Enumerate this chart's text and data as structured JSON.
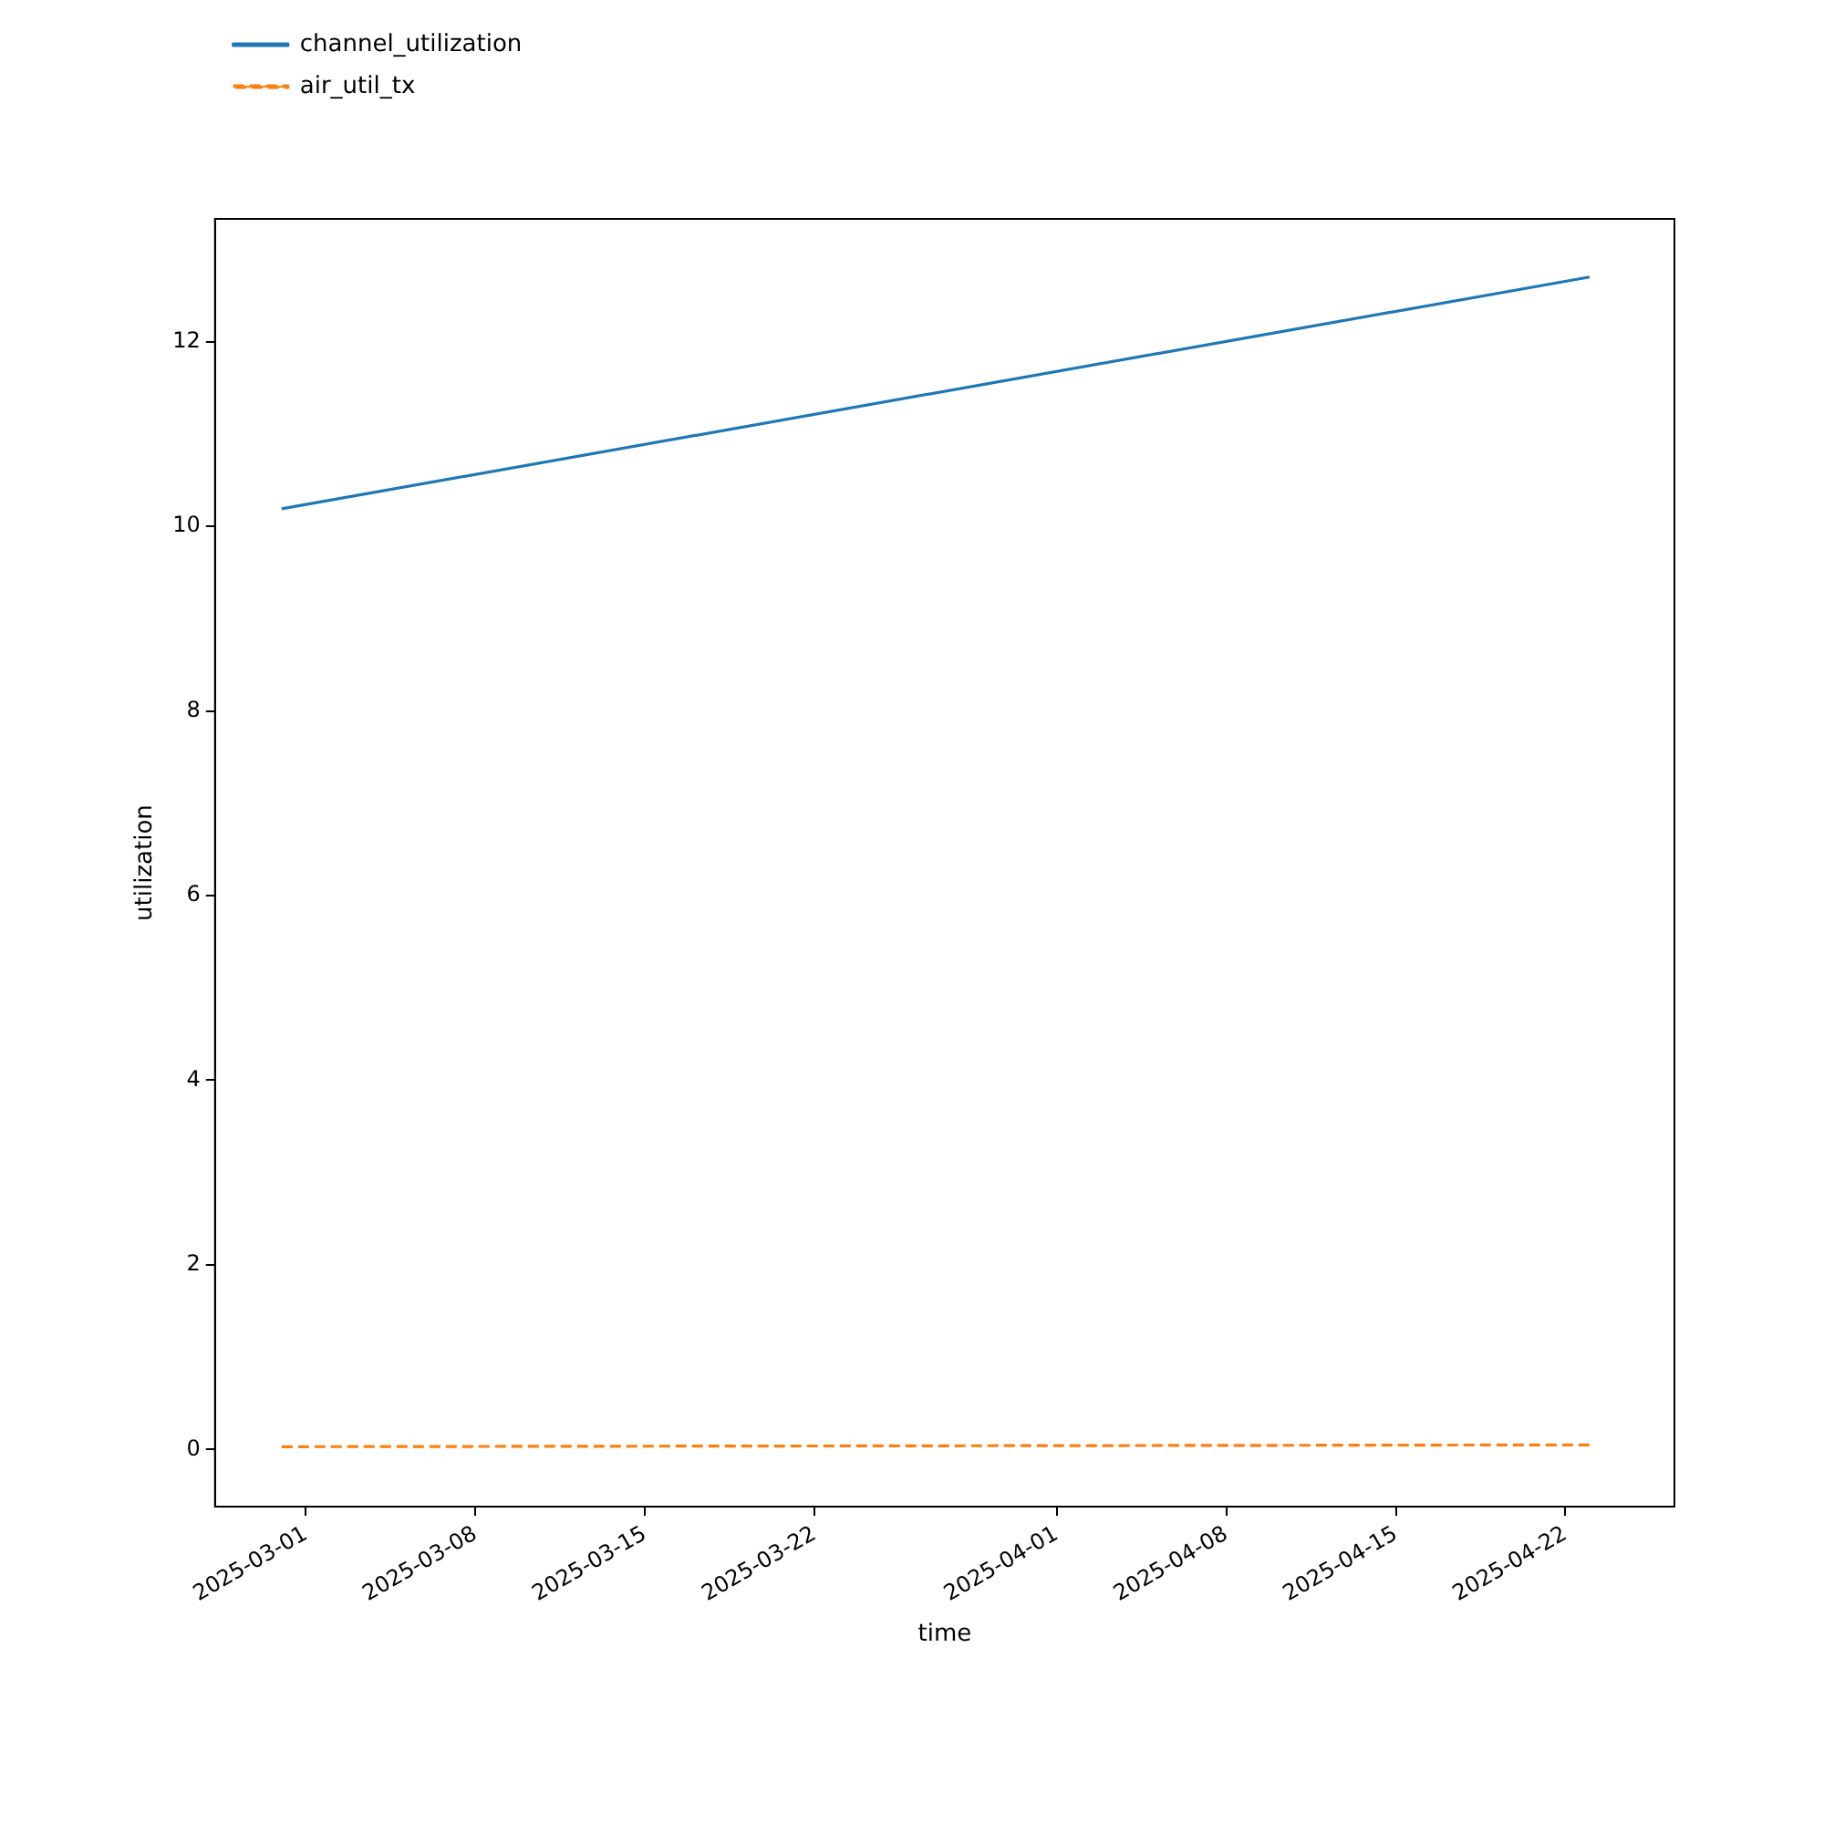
{
  "chart_data": {
    "type": "line",
    "xlabel": "time",
    "ylabel": "utilization",
    "x": [
      "2025-02-28",
      "2025-04-23"
    ],
    "series": [
      {
        "name": "channel_utilization",
        "color": "#1f77b4",
        "values": [
          10.19,
          12.7
        ],
        "line_style": "solid"
      },
      {
        "name": "air_util_tx",
        "color": "#ff7f0e",
        "values": [
          0.03,
          0.05
        ],
        "line_style": "dashed"
      }
    ],
    "xlim": [
      "2025-02-25T06:00",
      "2025-04-26T12:00"
    ],
    "xticks": [
      "2025-03-01",
      "2025-03-08",
      "2025-03-15",
      "2025-03-22",
      "2025-04-01",
      "2025-04-08",
      "2025-04-15",
      "2025-04-22"
    ],
    "ylim": [
      -0.62,
      13.33
    ],
    "yticks": [
      0,
      2,
      4,
      6,
      8,
      10,
      12
    ],
    "grid": false,
    "legend": "top left",
    "marker": "none"
  }
}
